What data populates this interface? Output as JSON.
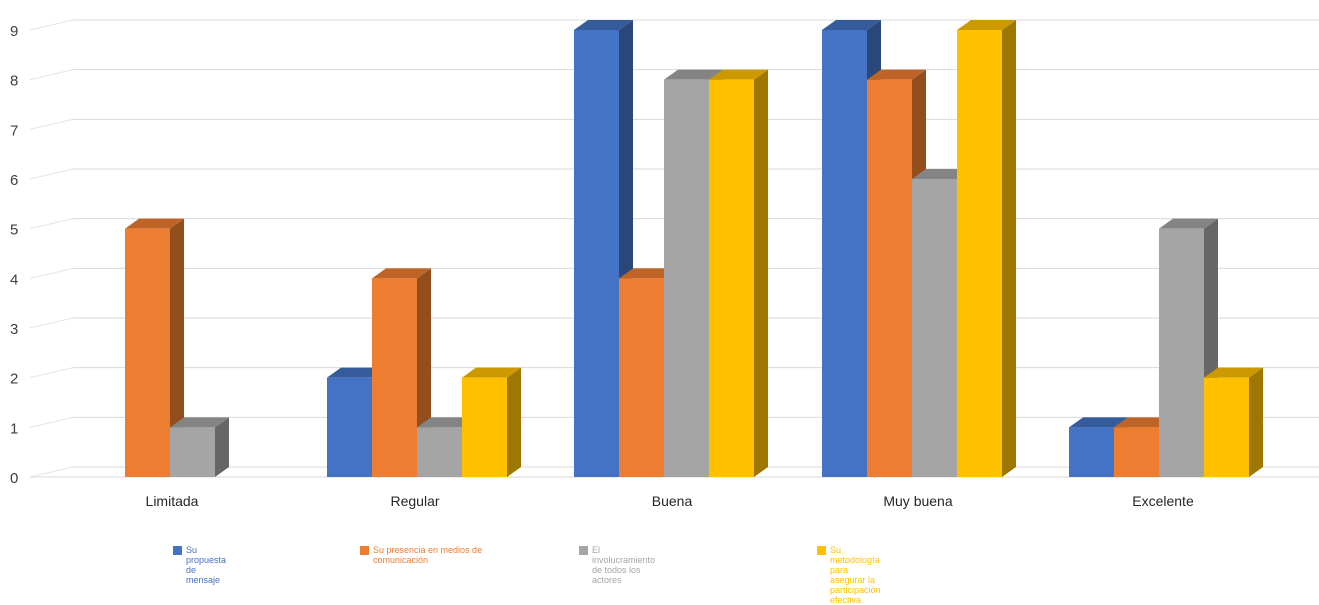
{
  "chart_data": {
    "type": "bar",
    "title": "",
    "xlabel": "",
    "ylabel": "",
    "ylim": [
      0,
      9
    ],
    "yticks": [
      0,
      1,
      2,
      3,
      4,
      5,
      6,
      7,
      8,
      9
    ],
    "grid": true,
    "legend_position": "bottom",
    "style": "3d-clustered-column",
    "categories": [
      "Limitada",
      "Regular",
      "Buena",
      "Muy buena",
      "Excelente"
    ],
    "series": [
      {
        "name": "Su propuesta de mensaje",
        "values": [
          0,
          2,
          9,
          9,
          1
        ],
        "color": "#4472C4"
      },
      {
        "name": "Su presencia en medios de comunicación",
        "values": [
          5,
          4,
          4,
          8,
          1
        ],
        "color": "#ED7D31"
      },
      {
        "name": "El involucramiento de todos los actores",
        "values": [
          1,
          1,
          8,
          6,
          5
        ],
        "color": "#A5A5A5"
      },
      {
        "name": "Su metodología para asegurar la participación efectiva",
        "values": [
          0,
          2,
          8,
          9,
          2
        ],
        "color": "#FFC000"
      }
    ]
  }
}
